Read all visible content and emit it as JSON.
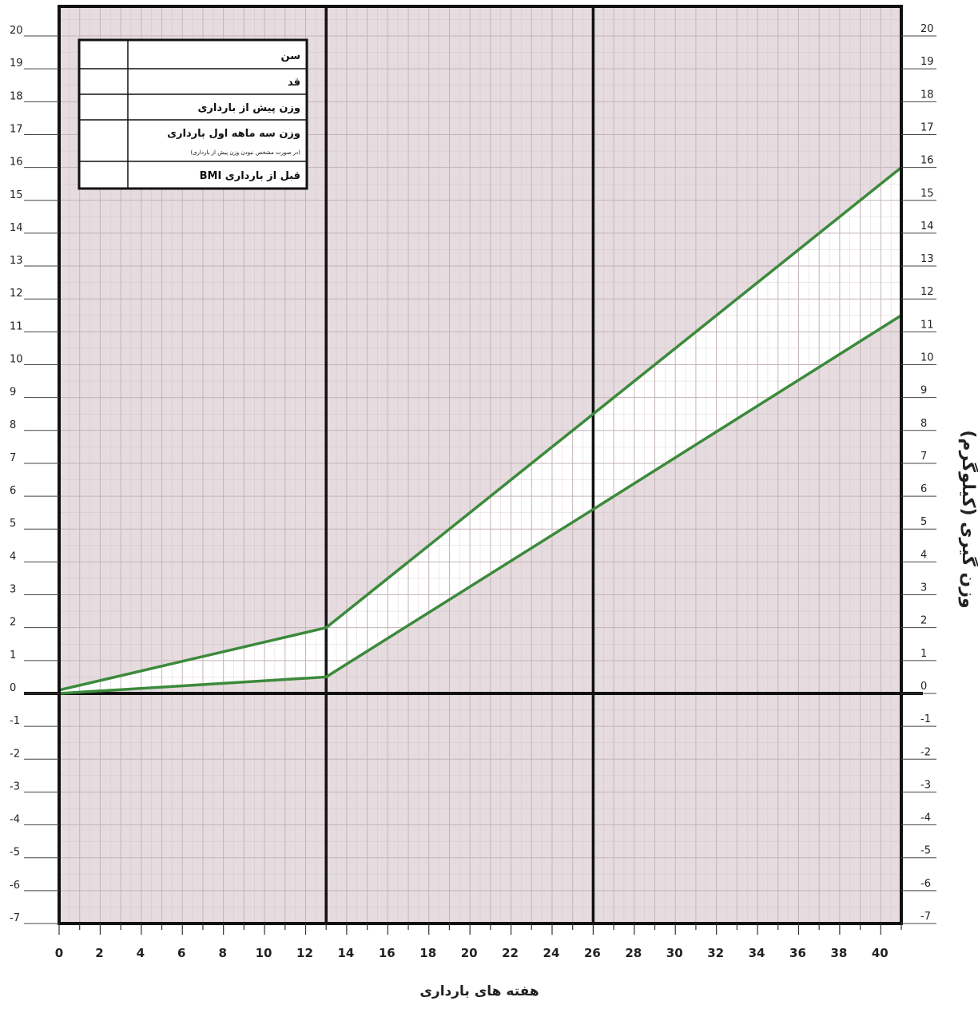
{
  "chart_data": {
    "type": "line",
    "title": "",
    "xlabel": "هفته های بارداری",
    "ylabel": "وزن گیری (کیلوگرم)",
    "xlim": [
      0,
      41
    ],
    "ylim": [
      -7,
      21
    ],
    "x_ticks_even": [
      0,
      2,
      4,
      6,
      8,
      10,
      12,
      14,
      16,
      18,
      20,
      22,
      24,
      26,
      28,
      30,
      32,
      34,
      36,
      38,
      40
    ],
    "x_tick_special": [
      13
    ],
    "y_ticks": [
      -7,
      -6,
      -5,
      -4,
      -3,
      -2,
      -1,
      0,
      1,
      2,
      3,
      4,
      5,
      6,
      7,
      8,
      9,
      10,
      11,
      12,
      13,
      14,
      15,
      16,
      17,
      18,
      19,
      20
    ],
    "y_tick_labels": [
      "-7",
      "-6",
      "-5",
      "-4",
      "-3",
      "-2",
      "-1",
      "0",
      "1",
      "2",
      "3",
      "4",
      "5",
      "6",
      "7",
      "8",
      "9",
      "10",
      "11",
      "12",
      "13",
      "14",
      "15",
      "16",
      "17",
      "18",
      "19",
      "20"
    ],
    "vertical_markers": [
      13,
      26
    ],
    "grid": true,
    "series": [
      {
        "x": [
          0,
          13,
          26,
          41
        ],
        "y": [
          0.1,
          2.0,
          8.5,
          16.0
        ]
      },
      {
        "x": [
          0,
          13,
          26,
          41
        ],
        "y": [
          0.0,
          0.5,
          5.6,
          11.5
        ]
      }
    ],
    "colors": {
      "background": "#e6dcdf",
      "grid": "#c3b4b8",
      "band_fill": "#ffffff",
      "series_line": "#3c8a3c",
      "axis": "#111111"
    }
  },
  "info_table": {
    "rows": [
      {
        "label": "سن",
        "note": ""
      },
      {
        "label": "قد",
        "note": ""
      },
      {
        "label": "وزن پیش از بارداری",
        "note": ""
      },
      {
        "label": "وزن سه ماهه اول بارداری",
        "note": "(در صورت مشخص نبودن وزن پیش از بارداری)"
      },
      {
        "label": "قبل از بارداری BMI",
        "note": ""
      }
    ]
  }
}
